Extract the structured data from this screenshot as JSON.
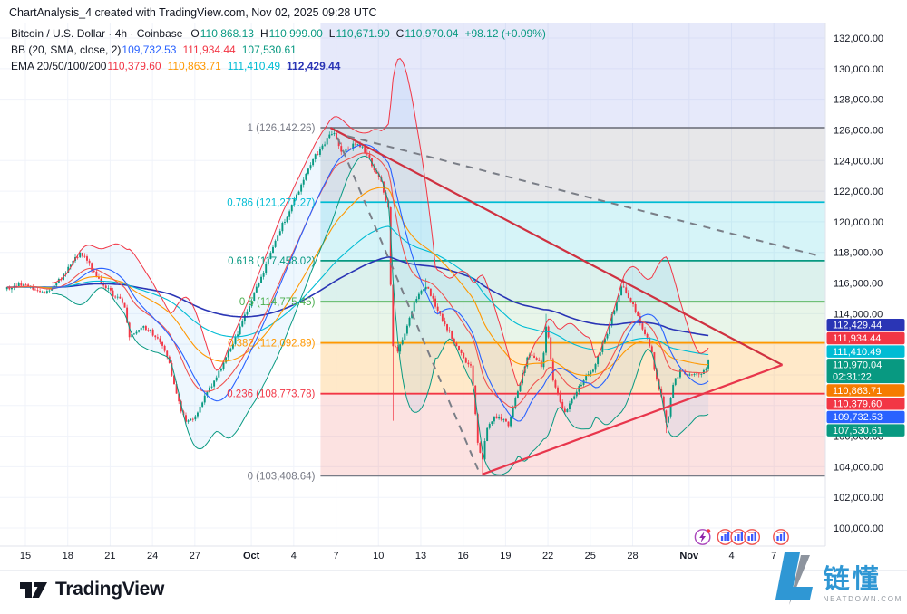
{
  "title_bar": {
    "text": "ChartAnalysis_4 created with TradingView.com, Nov 02, 2025 09:28 UTC"
  },
  "legend": {
    "row1": {
      "symbol_line": "Bitcoin / U.S. Dollar · 4h · Coinbase",
      "o_label": "O",
      "o_value": "110,868.13",
      "h_label": "H",
      "h_value": "110,999.00",
      "l_label": "L",
      "l_value": "110,671.90",
      "c_label": "C",
      "c_value": "110,970.04",
      "change": "+98.12 (+0.09%)"
    },
    "row2": {
      "label": "BB (20, SMA, close, 2)",
      "basis_value": "109,732.53",
      "upper_value": "111,934.44",
      "lower_value": "107,530.61"
    },
    "row3": {
      "label": "EMA 20/50/100/200",
      "ema20_value": "110,379.60",
      "ema50_value": "110,863.71",
      "ema100_value": "111,410.49",
      "ema200_value": "112,429.44"
    }
  },
  "footer": {
    "tradingview_label": "TradingView",
    "brand_name": "链懂",
    "brand_sub": "NEATDOWN.COM"
  },
  "chart_data": {
    "type": "candlestick",
    "symbol": "Bitcoin / U.S. Dollar",
    "interval": "4h",
    "exchange": "Coinbase",
    "ohlc": {
      "open": 110868.13,
      "high": 110999.0,
      "low": 110671.9,
      "close": 110970.04,
      "change": 98.12,
      "change_pct": 0.09
    },
    "current": {
      "value": 110970.04,
      "label": "110,970.04",
      "countdown": "02:31:22"
    },
    "y_axis": {
      "min": 100000,
      "max": 132000,
      "tick_step": 2000,
      "hidden_ticks": [
        108000,
        110000,
        112000
      ]
    },
    "x_axis": {
      "ticks": [
        {
          "label": "15",
          "d": 0
        },
        {
          "label": "18",
          "d": 3
        },
        {
          "label": "21",
          "d": 6
        },
        {
          "label": "24",
          "d": 9
        },
        {
          "label": "27",
          "d": 12
        },
        {
          "label": "Oct",
          "d": 16,
          "bold": true
        },
        {
          "label": "4",
          "d": 19
        },
        {
          "label": "7",
          "d": 22
        },
        {
          "label": "10",
          "d": 25
        },
        {
          "label": "13",
          "d": 28
        },
        {
          "label": "16",
          "d": 31
        },
        {
          "label": "19",
          "d": 34
        },
        {
          "label": "22",
          "d": 37
        },
        {
          "label": "25",
          "d": 40
        },
        {
          "label": "28",
          "d": 43
        },
        {
          "label": "Nov",
          "d": 47,
          "bold": true
        },
        {
          "label": "4",
          "d": 50
        },
        {
          "label": "7",
          "d": 53
        }
      ]
    },
    "bars": {
      "start_d": -1.3,
      "end_d": 48.45,
      "interval_days": 0.16667,
      "day0": "Sep 15"
    },
    "price_path": [
      [
        -1.3,
        115600
      ],
      [
        0,
        116000
      ],
      [
        1,
        115400
      ],
      [
        2,
        115700
      ],
      [
        3,
        116900
      ],
      [
        3.8,
        117900
      ],
      [
        4.3,
        117600
      ],
      [
        5,
        116500
      ],
      [
        6,
        115400
      ],
      [
        7,
        114600
      ],
      [
        7.4,
        112400
      ],
      [
        8.2,
        113200
      ],
      [
        9.4,
        112500
      ],
      [
        10.1,
        111000
      ],
      [
        11,
        107800
      ],
      [
        11.4,
        107000
      ],
      [
        12,
        107300
      ],
      [
        12.7,
        108500
      ],
      [
        13.9,
        110500
      ],
      [
        14.9,
        112400
      ],
      [
        16,
        114800
      ],
      [
        16.8,
        116600
      ],
      [
        17.5,
        118300
      ],
      [
        18.4,
        120200
      ],
      [
        19.4,
        122200
      ],
      [
        20.4,
        124100
      ],
      [
        21.3,
        125300
      ],
      [
        21.8,
        126000
      ],
      [
        22.3,
        124600
      ],
      [
        23,
        124900
      ],
      [
        23.6,
        125100
      ],
      [
        24.2,
        124400
      ],
      [
        25.2,
        122500
      ],
      [
        25.7,
        121000
      ],
      [
        26,
        112000
      ],
      [
        26.4,
        111500
      ],
      [
        27,
        113000
      ],
      [
        27.6,
        114800
      ],
      [
        28.4,
        115900
      ],
      [
        29.2,
        114200
      ],
      [
        30,
        112800
      ],
      [
        31,
        111200
      ],
      [
        31.6,
        110400
      ],
      [
        32,
        105800
      ],
      [
        32.4,
        104200
      ],
      [
        32.6,
        106300
      ],
      [
        33.2,
        107300
      ],
      [
        34.2,
        106800
      ],
      [
        34.6,
        108200
      ],
      [
        35.6,
        111400
      ],
      [
        36.6,
        110600
      ],
      [
        36.9,
        113500
      ],
      [
        37.4,
        109500
      ],
      [
        38.2,
        107500
      ],
      [
        39.3,
        109300
      ],
      [
        40.3,
        110600
      ],
      [
        41.2,
        112800
      ],
      [
        42,
        115300
      ],
      [
        42.3,
        115800
      ],
      [
        43.2,
        114200
      ],
      [
        43.8,
        112900
      ],
      [
        44.3,
        111800
      ],
      [
        44.6,
        110000
      ],
      [
        45.1,
        108300
      ],
      [
        45.4,
        106600
      ],
      [
        45.9,
        109500
      ],
      [
        46.4,
        110300
      ],
      [
        47,
        109900
      ],
      [
        47.7,
        110100
      ],
      [
        48.1,
        110300
      ],
      [
        48.45,
        110970.04
      ]
    ],
    "wick_overrides": [
      {
        "d": 11.4,
        "side": "low",
        "price": 106800
      },
      {
        "d": 21.8,
        "side": "high",
        "price": 126142.26
      },
      {
        "d": 26.0,
        "side": "low",
        "price": 107000
      },
      {
        "d": 28.4,
        "side": "high",
        "price": 116300
      },
      {
        "d": 32.4,
        "side": "low",
        "price": 103408.64
      },
      {
        "d": 36.9,
        "side": "high",
        "price": 113980
      },
      {
        "d": 42.3,
        "side": "high",
        "price": 116250
      },
      {
        "d": 45.4,
        "side": "low",
        "price": 106200
      }
    ],
    "fib": {
      "x_start_d": 20.9,
      "levels": [
        {
          "level": "1",
          "price": 126142.26,
          "label": "1 (126,142.26)",
          "color": "#787b86"
        },
        {
          "level": "0.786",
          "price": 121277.27,
          "label": "0.786 (121,277.27)",
          "color": "#00bcd4"
        },
        {
          "level": "0.618",
          "price": 117458.02,
          "label": "0.618 (117,458.02)",
          "color": "#089981"
        },
        {
          "level": "0.5",
          "price": 114775.45,
          "label": "0.5 (114,775.45)",
          "color": "#4caf50"
        },
        {
          "level": "0.382",
          "price": 112092.89,
          "label": "0.382 (112,092.89)",
          "color": "#ff9800"
        },
        {
          "level": "0.236",
          "price": 108773.78,
          "label": "0.236 (108,773.78)",
          "color": "#f23645"
        },
        {
          "level": "0",
          "price": 103408.64,
          "label": "0 (103,408.64)",
          "color": "#787b86"
        }
      ],
      "bands": [
        {
          "from": null,
          "to": 126142.26,
          "fill": "rgba(116,134,230,0.18)"
        },
        {
          "from": 126142.26,
          "to": 121277.27,
          "fill": "rgba(134,137,147,0.20)"
        },
        {
          "from": 121277.27,
          "to": 117458.02,
          "fill": "rgba(0,188,212,0.16)"
        },
        {
          "from": 117458.02,
          "to": 114775.45,
          "fill": "rgba(8,153,129,0.14)"
        },
        {
          "from": 114775.45,
          "to": 112092.89,
          "fill": "rgba(102,187,106,0.15)"
        },
        {
          "from": 112092.89,
          "to": 108773.78,
          "fill": "rgba(255,167,38,0.25)"
        },
        {
          "from": 108773.78,
          "to": 103408.64,
          "fill": "rgba(239,83,80,0.17)"
        }
      ]
    },
    "trendlines": [
      {
        "name": "triangle-upper-trendline",
        "d1": 21.6,
        "p1": 126142,
        "d2": 53.6,
        "p2": 110650,
        "color": "#cf3140",
        "width": 2.2
      },
      {
        "name": "triangle-lower-trendline",
        "d1": 32.35,
        "p1": 103500,
        "d2": 53.6,
        "p2": 110650,
        "color": "#e8364c",
        "width": 2.2
      },
      {
        "name": "impulse-dashed-line",
        "d1": 22.1,
        "p1": 125500,
        "d2": 32.15,
        "p2": 103600,
        "color": "#7a7e87",
        "width": 2,
        "dash": "8,7"
      },
      {
        "name": "projection-dashed-line",
        "d1": 22.8,
        "p1": 125600,
        "d2": 56.3,
        "p2": 117750,
        "color": "#7a7e87",
        "width": 2,
        "dash": "8,7"
      }
    ],
    "indicators": {
      "bb": {
        "length": 20,
        "mult": 2,
        "basis_color": "#2962ff",
        "upper_color": "#f23645",
        "lower_color": "#089981",
        "fill": "rgba(33,150,243,0.08)"
      },
      "ema": [
        {
          "length": 200,
          "color": "#2a35b5",
          "width": 1.6
        },
        {
          "length": 100,
          "color": "#00bcd4",
          "width": 1.1
        },
        {
          "length": 50,
          "color": "#ff9800",
          "width": 1.1
        },
        {
          "length": 20,
          "color": "#ef5350",
          "width": 1.1
        }
      ]
    },
    "axis_badges": [
      {
        "label": "112,429.44",
        "bg": "#2a35b5"
      },
      {
        "label": "111,934.44",
        "bg": "#f23645"
      },
      {
        "label": "111,410.49",
        "bg": "#00bcd4"
      },
      {
        "label": "110,970.04",
        "sub": "02:31:22",
        "bg": "#089981"
      },
      {
        "label": "110,863.71",
        "bg": "#f57c00"
      },
      {
        "label": "110,379.60",
        "bg": "#f23645"
      },
      {
        "label": "109,732.53",
        "bg": "#2962ff"
      },
      {
        "label": "107,530.61",
        "bg": "#089981"
      }
    ],
    "events": [
      {
        "type": "flash",
        "d": 47.95
      },
      {
        "type": "flag",
        "d": 49.55
      },
      {
        "type": "flag",
        "d": 50.5
      },
      {
        "type": "flag",
        "d": 51.45
      },
      {
        "type": "flag",
        "d": 53.5
      }
    ],
    "colors": {
      "up": "#089981",
      "down": "#f23645",
      "grid": "#f0f3fa",
      "axis_text": "#131722",
      "current_line": "#089981"
    }
  }
}
